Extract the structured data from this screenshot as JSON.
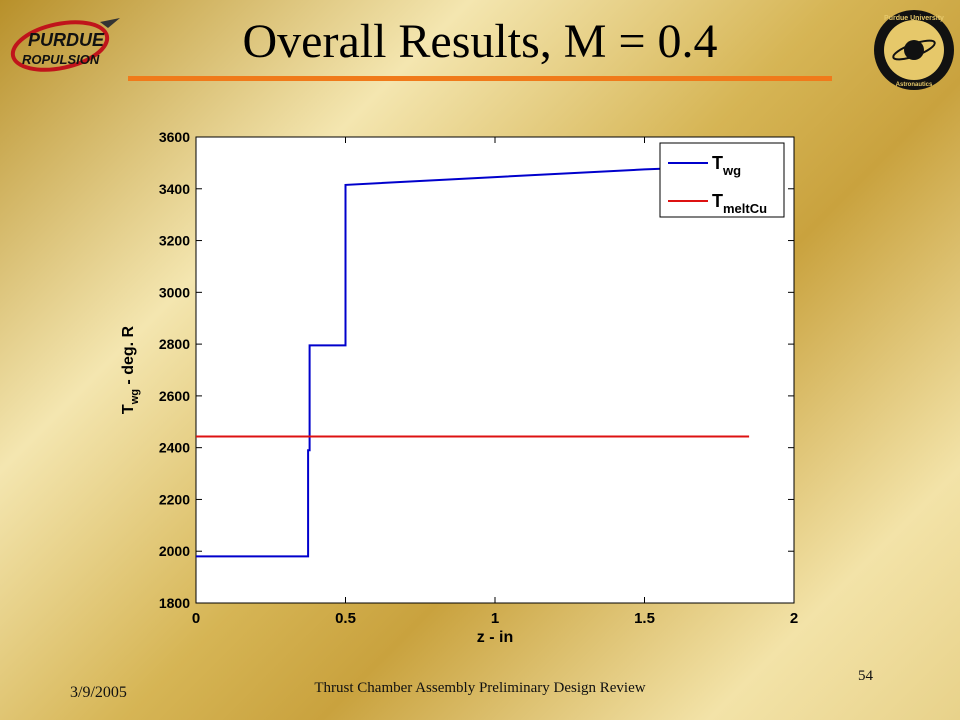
{
  "slide": {
    "title": "Overall Results, M = 0.4",
    "date": "3/9/2005",
    "footer": "Thrust Chamber Assembly Preliminary Design Review",
    "page_number": "54",
    "logo_left_text": "PURDUE PROPULSION",
    "logo_right_text": "Purdue University Aeronautics & Astronautics"
  },
  "colors": {
    "title_rule": "#f07a1a",
    "series_twg": "#0000cc",
    "series_tmelt": "#dd1111"
  },
  "chart_data": {
    "type": "line",
    "xlabel": "z - in",
    "ylabel": "T_wg - deg. R",
    "xlim": [
      0,
      2
    ],
    "ylim": [
      1800,
      3600
    ],
    "xticks": [
      0,
      0.5,
      1,
      1.5,
      2
    ],
    "xtick_labels": [
      "0",
      "0.5",
      "1",
      "1.5",
      "2"
    ],
    "yticks": [
      1800,
      2000,
      2200,
      2400,
      2600,
      2800,
      3000,
      3200,
      3400,
      3600
    ],
    "ytick_labels": [
      "1800",
      "2000",
      "2200",
      "2400",
      "2600",
      "2800",
      "3000",
      "3200",
      "3400",
      "3600"
    ],
    "grid": false,
    "legend_position": "top-right",
    "series": [
      {
        "name": "T_wg",
        "legend_main": "T",
        "legend_sub": "wg",
        "x": [
          0,
          0.375,
          0.375,
          0.38,
          0.38,
          0.5,
          0.5,
          1.0,
          1.5,
          1.85
        ],
        "y": [
          1980,
          1980,
          2390,
          2390,
          2795,
          2795,
          3415,
          3445,
          3475,
          3490
        ]
      },
      {
        "name": "T_meltCu",
        "legend_main": "T",
        "legend_sub": "meltCu",
        "x": [
          0,
          1.85
        ],
        "y": [
          2443,
          2443
        ]
      }
    ]
  }
}
